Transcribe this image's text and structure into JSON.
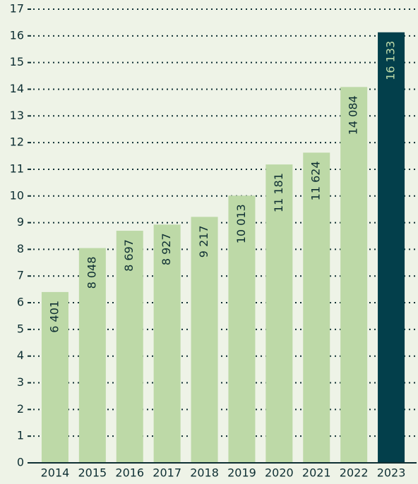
{
  "chart_data": {
    "type": "bar",
    "categories": [
      "2014",
      "2015",
      "2016",
      "2017",
      "2018",
      "2019",
      "2020",
      "2021",
      "2022",
      "2023"
    ],
    "values": [
      6.401,
      8.048,
      8.697,
      8.927,
      9.217,
      10.013,
      11.181,
      11.624,
      14.084,
      16.133
    ],
    "value_labels": [
      "6 401",
      "8 048",
      "8 697",
      "8 927",
      "9 217",
      "10 013",
      "11 181",
      "11 624",
      "14 084",
      "16 133"
    ],
    "colors": [
      "#bdd9a7",
      "#bdd9a7",
      "#bdd9a7",
      "#bdd9a7",
      "#bdd9a7",
      "#bdd9a7",
      "#bdd9a7",
      "#bdd9a7",
      "#bdd9a7",
      "#033f4b"
    ],
    "ylim": [
      0,
      17
    ],
    "yticks": [
      0,
      1,
      2,
      3,
      4,
      5,
      6,
      7,
      8,
      9,
      10,
      11,
      12,
      13,
      14,
      15,
      16,
      17
    ],
    "grid": true
  }
}
